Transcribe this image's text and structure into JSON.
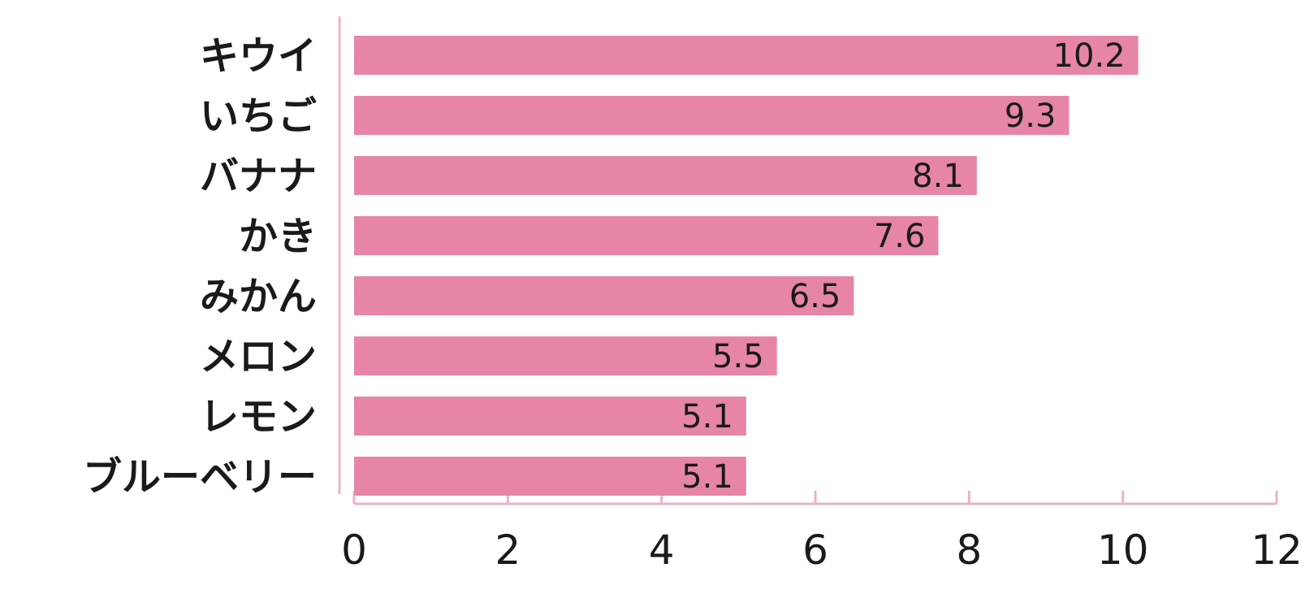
{
  "chart_data": {
    "type": "bar",
    "orientation": "horizontal",
    "categories": [
      "キウイ",
      "いちご",
      "バナナ",
      "かき",
      "みかん",
      "メロン",
      "レモン",
      "ブルーベリー"
    ],
    "values": [
      10.2,
      9.3,
      8.1,
      7.6,
      6.5,
      5.5,
      5.1,
      5.1
    ],
    "value_labels": [
      "10.2",
      "9.3",
      "8.1",
      "7.6",
      "6.5",
      "5.5",
      "5.1",
      "5.1"
    ],
    "x_ticks": [
      "0",
      "2",
      "4",
      "6",
      "8",
      "10",
      "12"
    ],
    "xlim": [
      0,
      12
    ],
    "title": "",
    "xlabel": "",
    "ylabel": "",
    "grid": false,
    "bar_color": "#e685a8",
    "axis_color": "#e9b3c7"
  }
}
